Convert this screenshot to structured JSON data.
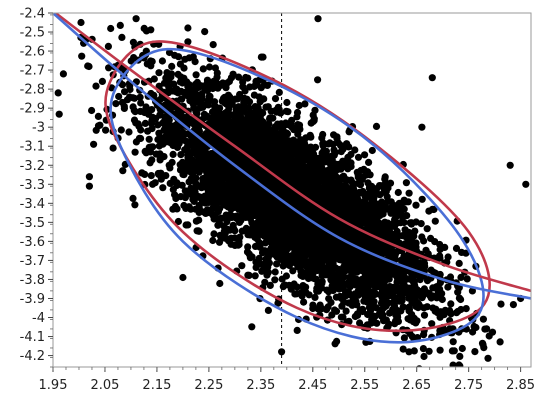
{
  "chart_data": {
    "type": "scatter",
    "title": "",
    "xlabel": "",
    "ylabel": "",
    "xlim": [
      1.95,
      2.87
    ],
    "ylim": [
      -4.26,
      -2.4
    ],
    "x_ticks": [
      "1.95",
      "2.05",
      "2.15",
      "2.25",
      "2.35",
      "2.45",
      "2.55",
      "2.65",
      "2.75",
      "2.85"
    ],
    "y_ticks": [
      "-2.4",
      "-2.5",
      "-2.6",
      "-2.7",
      "-2.8",
      "-2.9",
      "-3",
      "-3.1",
      "-3.2",
      "-3.3",
      "-3.4",
      "-3.5",
      "-3.6",
      "-3.7",
      "-3.8",
      "-3.9",
      "-4",
      "-4.1",
      "-4.2"
    ],
    "reference_line": {
      "axis": "x",
      "value": 2.39,
      "style": "dashed",
      "color": "#000000"
    },
    "points_summary": {
      "count_approx": 5000,
      "center": [
        2.41,
        -3.38
      ],
      "sd_x": 0.135,
      "sd_y": 0.3,
      "correlation": -0.75,
      "color": "#000000"
    },
    "visible_outliers": [
      {
        "x": 1.96,
        "y": -2.82
      },
      {
        "x": 1.97,
        "y": -2.72
      },
      {
        "x": 2.02,
        "y": -3.26
      },
      {
        "x": 2.02,
        "y": -3.31
      },
      {
        "x": 2.11,
        "y": -2.43
      },
      {
        "x": 2.46,
        "y": -2.43
      },
      {
        "x": 2.68,
        "y": -2.74
      },
      {
        "x": 2.66,
        "y": -3.0
      },
      {
        "x": 2.83,
        "y": -3.2
      },
      {
        "x": 2.86,
        "y": -3.3
      },
      {
        "x": 2.85,
        "y": -3.9
      },
      {
        "x": 2.39,
        "y": -4.18
      },
      {
        "x": 2.2,
        "y": -3.79
      },
      {
        "x": 2.72,
        "y": -4.25
      }
    ],
    "series": [
      {
        "kind": "density-ellipse",
        "color": "#c0394b",
        "center": [
          2.42,
          -3.41
        ],
        "path": [
          [
            2.06,
            -2.76
          ],
          [
            2.15,
            -2.55
          ],
          [
            2.35,
            -2.72
          ],
          [
            2.55,
            -3.05
          ],
          [
            2.75,
            -3.55
          ],
          [
            2.78,
            -3.93
          ],
          [
            2.62,
            -4.07
          ],
          [
            2.42,
            -3.95
          ],
          [
            2.2,
            -3.55
          ],
          [
            2.07,
            -3.05
          ],
          [
            2.06,
            -2.76
          ]
        ]
      },
      {
        "kind": "density-ellipse",
        "color": "#4a6fd6",
        "center": [
          2.42,
          -3.41
        ],
        "path": [
          [
            2.07,
            -2.8
          ],
          [
            2.17,
            -2.59
          ],
          [
            2.37,
            -2.76
          ],
          [
            2.57,
            -3.1
          ],
          [
            2.74,
            -3.6
          ],
          [
            2.77,
            -3.98
          ],
          [
            2.62,
            -4.13
          ],
          [
            2.42,
            -4.0
          ],
          [
            2.2,
            -3.6
          ],
          [
            2.08,
            -3.1
          ],
          [
            2.07,
            -2.8
          ]
        ]
      },
      {
        "kind": "fit-line",
        "color": "#c0394b",
        "points": [
          [
            1.95,
            -2.39
          ],
          [
            2.1,
            -2.7
          ],
          [
            2.3,
            -3.1
          ],
          [
            2.5,
            -3.48
          ],
          [
            2.7,
            -3.72
          ],
          [
            2.87,
            -3.86
          ]
        ]
      },
      {
        "kind": "fit-line",
        "color": "#4a6fd6",
        "points": [
          [
            1.95,
            -2.4
          ],
          [
            2.1,
            -2.76
          ],
          [
            2.3,
            -3.2
          ],
          [
            2.5,
            -3.58
          ],
          [
            2.7,
            -3.8
          ],
          [
            2.87,
            -3.9
          ]
        ]
      }
    ]
  }
}
